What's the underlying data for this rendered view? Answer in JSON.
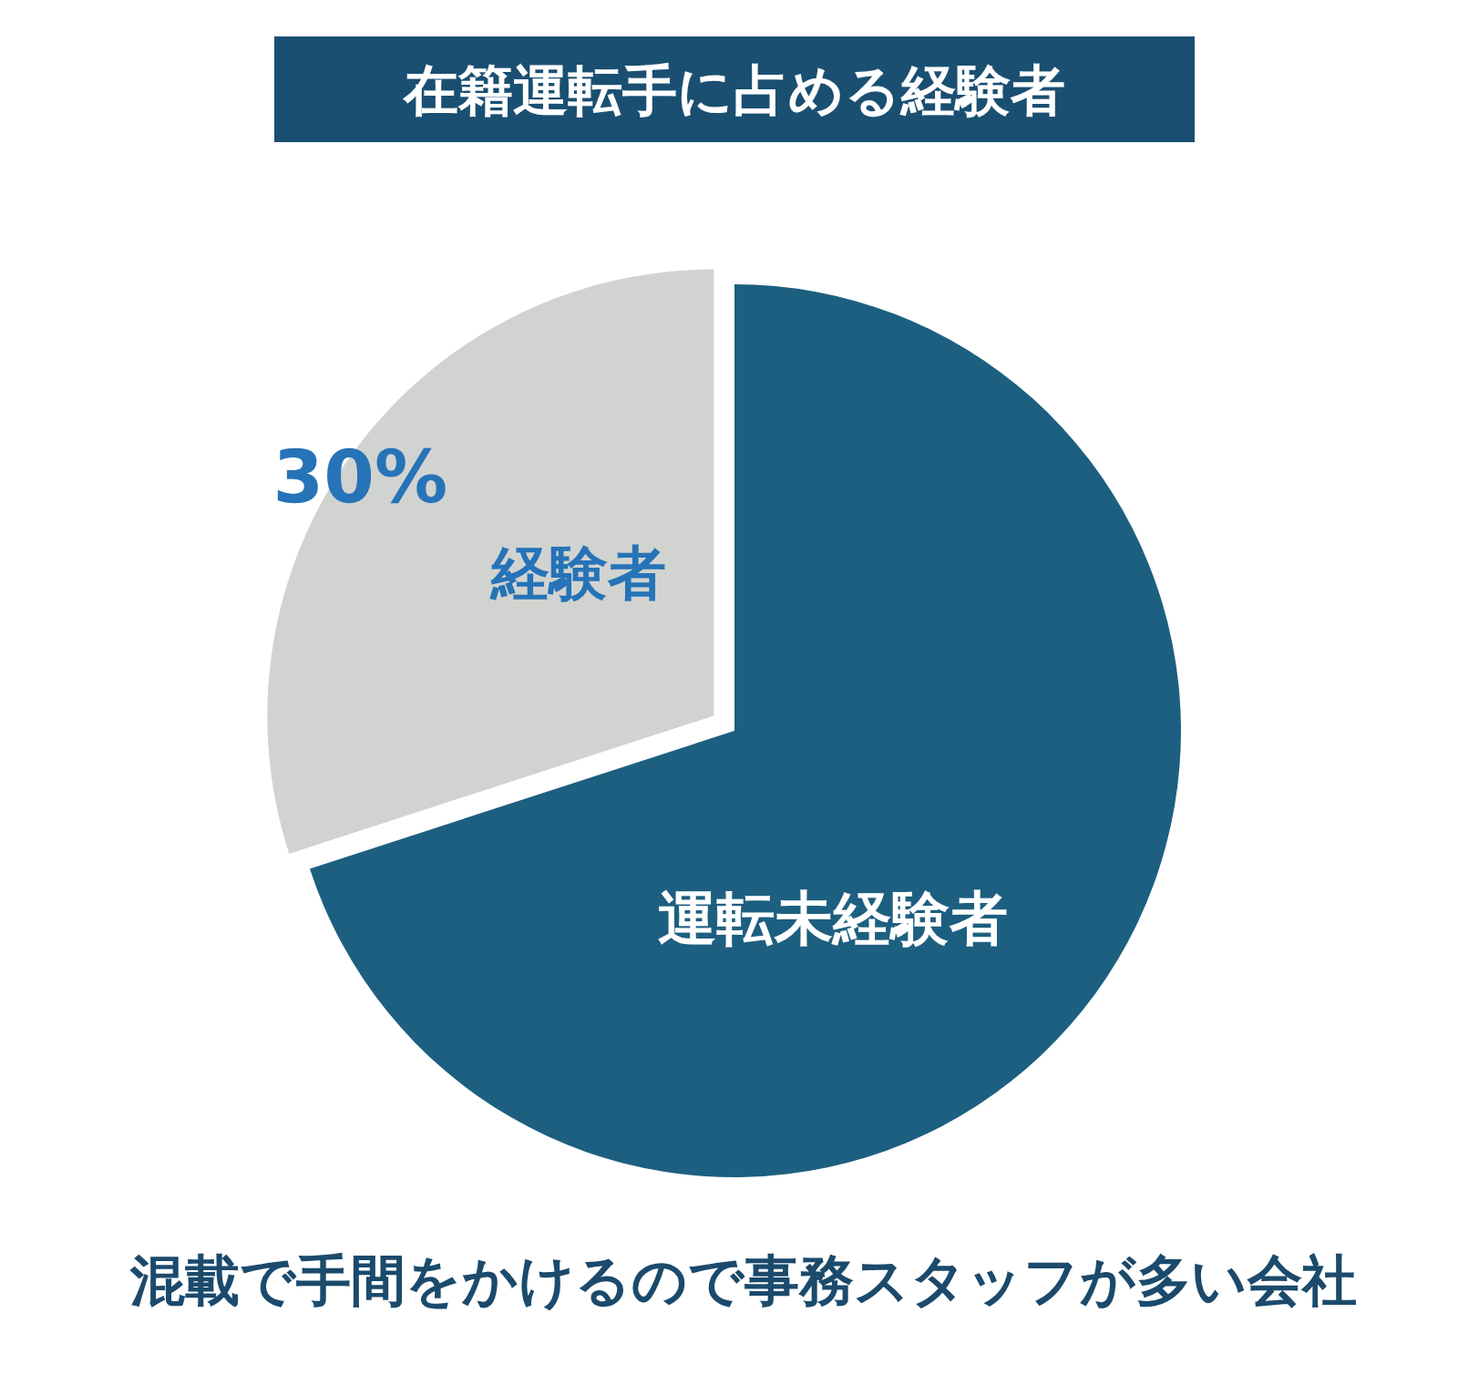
{
  "chart_data": {
    "type": "pie",
    "title": "在籍運転手に占める経験者",
    "categories": [
      "運転未経験者",
      "経験者"
    ],
    "values": [
      70,
      30
    ],
    "colors": [
      "#1d5f80",
      "#d1d3d0"
    ],
    "value_labels": [
      null,
      "30%"
    ],
    "annotations": [
      "混載で手間をかけるので事務スタッフが多い会社"
    ]
  }
}
